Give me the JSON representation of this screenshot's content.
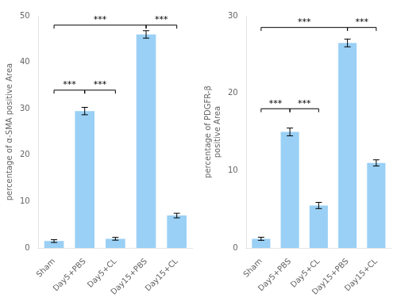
{
  "chart_data": [
    {
      "type": "bar",
      "categories": [
        "Sham",
        "Day5+PBS",
        "Day5+CL",
        "Day15+PBS",
        "Day15+CL"
      ],
      "values": [
        1.5,
        29.5,
        2.0,
        46.0,
        7.0
      ],
      "errors": [
        0.3,
        0.8,
        0.3,
        0.8,
        0.5
      ],
      "ylabel": "percentage of α-SMA positive Area",
      "ylim": [
        0,
        50
      ],
      "yticks": [
        0,
        10,
        20,
        30,
        40,
        50
      ],
      "grid": false,
      "annotations": [
        {
          "from": "Sham",
          "to": "Day5+PBS",
          "y": 34,
          "label": "***"
        },
        {
          "from": "Day5+PBS",
          "to": "Day5+CL",
          "y": 34,
          "label": "***"
        },
        {
          "from": "Sham",
          "to": "Day15+PBS",
          "y": 48,
          "label": "***"
        },
        {
          "from": "Day15+PBS",
          "to": "Day15+CL",
          "y": 48,
          "label": "***"
        }
      ]
    },
    {
      "type": "bar",
      "categories": [
        "Sham",
        "Day5+PBS",
        "Day5+CL",
        "Day15+PBS",
        "Day15+CL"
      ],
      "values": [
        1.2,
        15.0,
        5.5,
        26.5,
        11.0
      ],
      "errors": [
        0.2,
        0.5,
        0.4,
        0.5,
        0.4
      ],
      "ylabel": "percentage of PDGFR-β\npositive Area",
      "ylim": [
        0,
        30
      ],
      "yticks": [
        0,
        10,
        20,
        30
      ],
      "grid": false,
      "annotations": [
        {
          "from": "Sham",
          "to": "Day5+PBS",
          "y": 18,
          "label": "***"
        },
        {
          "from": "Day5+PBS",
          "to": "Day5+CL",
          "y": 18,
          "label": "***"
        },
        {
          "from": "Sham",
          "to": "Day15+PBS",
          "y": 28.5,
          "label": "***"
        },
        {
          "from": "Day15+PBS",
          "to": "Day15+CL",
          "y": 28.5,
          "label": "***"
        }
      ]
    }
  ]
}
